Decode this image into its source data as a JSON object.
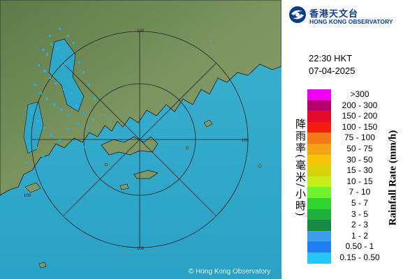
{
  "map": {
    "range_labels": [
      "100",
      "100",
      "100",
      "100"
    ],
    "copyright": "© Hong Kong Observatory",
    "colors": {
      "sea": "#2fa7c9",
      "land": "#6f8a55",
      "rings": "#2a2a2a",
      "echo": "#1fb5f0"
    }
  },
  "header": {
    "logo_cn": "香港天文台",
    "logo_en": "HONG KONG OBSERVATORY"
  },
  "timestamp": {
    "time": "22:30 HKT",
    "date": "07-04-2025"
  },
  "legend": {
    "title_cn": "降雨率(毫米/小時)",
    "title_en": "Rainfall Rate (mm/h)",
    "items": [
      {
        "label": ">300",
        "color": "#ee00ee"
      },
      {
        "label": "200 - 300",
        "color": "#b4006e"
      },
      {
        "label": "150 - 200",
        "color": "#e30c2a"
      },
      {
        "label": "100 - 150",
        "color": "#f41c0c"
      },
      {
        "label": "75 - 100",
        "color": "#f37a17"
      },
      {
        "label": "50 - 75",
        "color": "#f1a512"
      },
      {
        "label": "30 - 50",
        "color": "#f6c309"
      },
      {
        "label": "15 - 30",
        "color": "#d7d20e"
      },
      {
        "label": "10 - 15",
        "color": "#c7ee18"
      },
      {
        "label": "7 - 10",
        "color": "#6ff12e"
      },
      {
        "label": "5 - 7",
        "color": "#31d32f"
      },
      {
        "label": "3 - 5",
        "color": "#21ae3d"
      },
      {
        "label": "2 - 3",
        "color": "#178a48"
      },
      {
        "label": "1 - 2",
        "color": "#3f9dee"
      },
      {
        "label": "0.50 - 1",
        "color": "#1f7ff1"
      },
      {
        "label": "0.15 - 0.50",
        "color": "#27c5f9"
      }
    ]
  }
}
